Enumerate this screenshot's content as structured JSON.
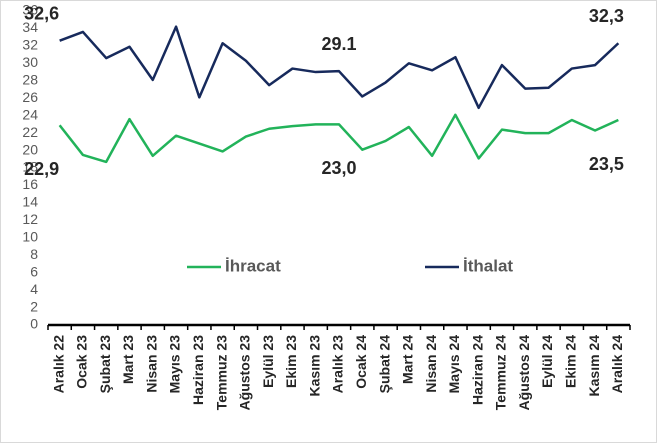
{
  "chart_data": {
    "type": "line",
    "categories": [
      "Aralık 22",
      "Ocak 23",
      "Şubat 23",
      "Mart 23",
      "Nisan 23",
      "Mayıs 23",
      "Haziran 23",
      "Temmuz 23",
      "Ağustos 23",
      "Eylül 23",
      "Ekim 23",
      "Kasım 23",
      "Aralık 23",
      "Ocak 24",
      "Şubat 24",
      "Mart 24",
      "Nisan 24",
      "Mayıs 24",
      "Haziran 24",
      "Temmuz 24",
      "Ağustos 24",
      "Eylül 24",
      "Ekim 24",
      "Kasım 24",
      "Aralık 24"
    ],
    "series": [
      {
        "name": "İhracat",
        "color": "#22b35a",
        "values": [
          22.9,
          19.5,
          18.7,
          23.6,
          19.4,
          21.7,
          20.8,
          19.9,
          21.6,
          22.5,
          22.8,
          23.0,
          23.0,
          20.1,
          21.1,
          22.7,
          19.4,
          24.1,
          19.1,
          22.4,
          22.0,
          22.0,
          23.5,
          22.3,
          23.5
        ],
        "value_labels": [
          "22,9",
          null,
          null,
          null,
          null,
          null,
          null,
          null,
          null,
          null,
          null,
          null,
          "23,0",
          null,
          null,
          null,
          null,
          null,
          null,
          null,
          null,
          null,
          null,
          null,
          "23,5"
        ]
      },
      {
        "name": "İthalat",
        "color": "#172a5c",
        "values": [
          32.6,
          33.6,
          30.6,
          31.9,
          28.1,
          34.2,
          26.1,
          32.3,
          30.3,
          27.5,
          29.4,
          29.0,
          29.1,
          26.2,
          27.8,
          30.0,
          29.2,
          30.7,
          24.9,
          29.8,
          27.1,
          27.2,
          29.4,
          29.8,
          32.3
        ],
        "value_labels": [
          "32,6",
          null,
          null,
          null,
          null,
          null,
          null,
          null,
          null,
          null,
          null,
          null,
          "29.1",
          null,
          null,
          null,
          null,
          null,
          null,
          null,
          null,
          null,
          null,
          null,
          "32,3"
        ]
      }
    ],
    "ylim": [
      0,
      36
    ],
    "yticks": [
      0,
      2,
      4,
      6,
      8,
      10,
      12,
      14,
      16,
      18,
      20,
      22,
      24,
      26,
      28,
      30,
      32,
      34,
      36
    ],
    "grid": false
  }
}
